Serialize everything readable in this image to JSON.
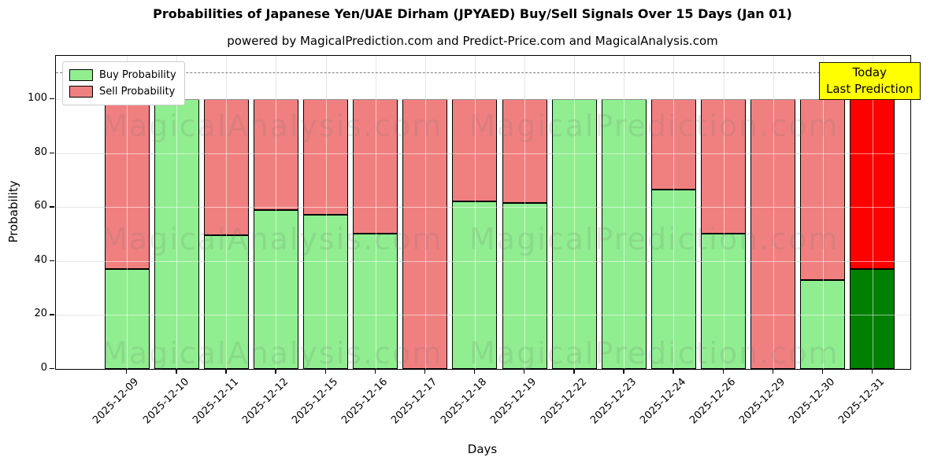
{
  "title": "Probabilities of Japanese Yen/UAE Dirham (JPYAED) Buy/Sell Signals Over 15 Days (Jan 01)",
  "subtitle": "powered by MagicalPrediction.com and Predict-Price.com and MagicalAnalysis.com",
  "legend": {
    "buy_label": "Buy Probability",
    "sell_label": "Sell Probability"
  },
  "annotation_box": {
    "line1": "Today",
    "line2": "Last Prediction"
  },
  "axes": {
    "x_label": "Days",
    "y_label": "Probability"
  },
  "watermarks": [
    "MagicalAnalysis.com",
    "MagicalPrediction.com"
  ],
  "colors": {
    "buy": "#90EE90",
    "sell": "#F08080",
    "today_buy": "#008000",
    "today_sell": "#FF0000",
    "today_box_bg": "#FFFF00",
    "dashed_line": "#7F7F7F",
    "grid": "#C8C8C8",
    "bar_edge": "#000000"
  },
  "chart_data": {
    "type": "bar",
    "stacked": true,
    "title": "Probabilities of Japanese Yen/UAE Dirham (JPYAED) Buy/Sell Signals Over 15 Days (Jan 01)",
    "xlabel": "Days",
    "ylabel": "Probability",
    "ylim": [
      0,
      116
    ],
    "yticks": [
      0,
      20,
      40,
      60,
      80,
      100
    ],
    "grid": true,
    "legend_position": "upper left",
    "dashed_hline": 110,
    "categories": [
      "2025-12-09",
      "2025-12-10",
      "2025-12-11",
      "2025-12-12",
      "2025-12-15",
      "2025-12-16",
      "2025-12-17",
      "2025-12-18",
      "2025-12-19",
      "2025-12-22",
      "2025-12-23",
      "2025-12-24",
      "2025-12-26",
      "2025-12-29",
      "2025-12-30",
      "2025-12-31"
    ],
    "series": [
      {
        "name": "Buy Probability",
        "color": "#90EE90",
        "values": [
          37,
          100,
          49.5,
          59,
          57,
          50,
          0,
          62,
          61.5,
          100,
          100,
          66.5,
          50,
          0,
          33,
          37
        ]
      },
      {
        "name": "Sell Probability",
        "color": "#F08080",
        "values": [
          63,
          0,
          50.5,
          41,
          43,
          50,
          100,
          38,
          38.5,
          0,
          0,
          33.5,
          50,
          100,
          67,
          63
        ]
      }
    ],
    "today_bar": {
      "category": "2025-12-31",
      "index": 15,
      "buy_color": "#008000",
      "sell_color": "#FF0000"
    }
  }
}
